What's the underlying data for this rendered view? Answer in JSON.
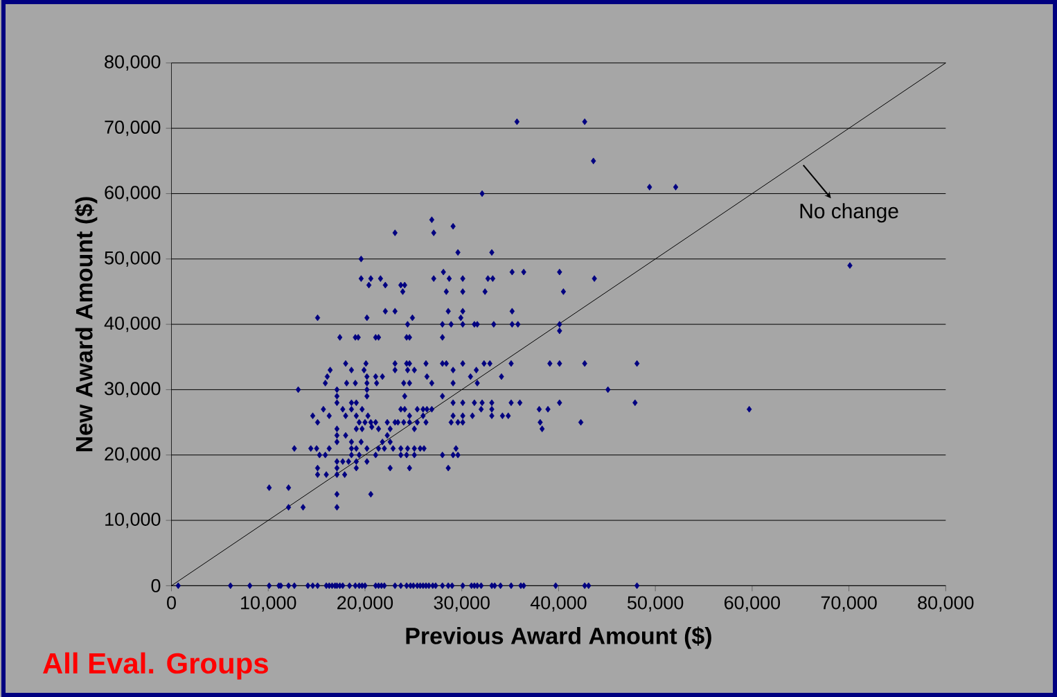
{
  "chart_data": {
    "type": "scatter",
    "xlabel": "Previous Award Amount ($)",
    "ylabel": "New Award Amount ($)",
    "xlim": [
      0,
      80000
    ],
    "ylim": [
      0,
      80000
    ],
    "xticks": [
      0,
      {
        "value": 10000,
        "label": "10,000"
      },
      {
        "value": 20000,
        "label": "20,000"
      },
      {
        "value": 30000,
        "label": "30,000"
      },
      {
        "value": 40000,
        "label": "40,000"
      },
      {
        "value": 50000,
        "label": "50,000"
      },
      {
        "value": 60000,
        "label": "60,000"
      },
      {
        "value": 70000,
        "label": "70,000"
      },
      {
        "value": 80000,
        "label": "80,000"
      }
    ],
    "yticks": [
      0,
      {
        "value": 10000,
        "label": "10,000"
      },
      {
        "value": 20000,
        "label": "20,000"
      },
      {
        "value": 30000,
        "label": "30,000"
      },
      {
        "value": 40000,
        "label": "40,000"
      },
      {
        "value": 50000,
        "label": "50,000"
      },
      {
        "value": 60000,
        "label": "60,000"
      },
      {
        "value": 70000,
        "label": "70,000"
      },
      {
        "value": 80000,
        "label": "80,000"
      }
    ],
    "grid": "y",
    "series": [
      {
        "color": "#000080",
        "marker": "diamond",
        "x": [
          700,
          6100,
          8100,
          10100,
          11100,
          11300,
          12100,
          12700,
          14100,
          14600,
          15100,
          16000,
          16300,
          16600,
          16900,
          17100,
          17400,
          17700,
          18400,
          19000,
          19400,
          19700,
          20000,
          21100,
          21400,
          21700,
          22000,
          23100,
          23700,
          24300,
          24700,
          25000,
          25400,
          25700,
          26000,
          26300,
          26600,
          27000,
          27300,
          28000,
          28600,
          29000,
          30100,
          31000,
          31300,
          31600,
          32000,
          33100,
          33400,
          34000,
          35100,
          36100,
          36400,
          39700,
          42700,
          43100,
          48100,
          13100,
          10100,
          12100,
          12100,
          13600,
          17100,
          17100,
          20600,
          15100,
          19600,
          19600,
          20400,
          20600,
          21600,
          22100,
          23100,
          23700,
          24100,
          23900,
          22100,
          23100,
          20200,
          24900,
          24400,
          17400,
          19000,
          19300,
          21100,
          21400,
          24300,
          24600,
          26900,
          27100,
          29100,
          29600,
          32100,
          28100,
          27100,
          28700,
          30100,
          28400,
          30100,
          32400,
          33100,
          32700,
          33200,
          35200,
          36400,
          35200,
          28600,
          30100,
          29900,
          28000,
          28900,
          30100,
          31300,
          31600,
          33300,
          35200,
          35800,
          28000,
          35700,
          42700,
          43600,
          49400,
          52100,
          70100,
          40100,
          40500,
          43700,
          40100,
          40100,
          48100,
          42700,
          39100,
          40100,
          35100,
          45100,
          47900,
          40100,
          38000,
          38900,
          38100,
          38300,
          42300,
          59700,
          34100,
          35100,
          36000,
          33100,
          33100,
          33100,
          34200,
          34800,
          32300,
          32900,
          31500,
          30900,
          31600,
          30100,
          29100,
          29100,
          30100,
          31300,
          32100,
          32000,
          31100,
          30100,
          29100,
          28900,
          29600,
          30100,
          28000,
          28000,
          28400,
          29100,
          29400,
          29100,
          29600,
          28600,
          28000,
          26300,
          26400,
          26900,
          25400,
          26000,
          26400,
          26900,
          26000,
          26300,
          25400,
          24300,
          24600,
          23100,
          23100,
          24400,
          25100,
          24000,
          24600,
          24100,
          23700,
          24100,
          24600,
          25100,
          23100,
          23400,
          24000,
          24600,
          22300,
          22600,
          22300,
          21800,
          22600,
          21400,
          22000,
          22900,
          23700,
          24400,
          25100,
          25700,
          26100,
          23700,
          24300,
          25100,
          22600,
          24600,
          18000,
          20100,
          18600,
          19900,
          20200,
          21100,
          21800,
          20200,
          18100,
          19000,
          21200,
          20200,
          20200,
          16400,
          16100,
          15900,
          17100,
          14600,
          15100,
          15700,
          16300,
          17100,
          17100,
          17100,
          17700,
          18000,
          18600,
          19100,
          18600,
          19100,
          19700,
          20300,
          19400,
          20000,
          20600,
          21100,
          19100,
          19700,
          20700,
          21400,
          16300,
          15000,
          14400,
          12700,
          15300,
          15900,
          17100,
          17700,
          18300,
          17100,
          17100,
          16000,
          15100,
          15100,
          17900,
          19100,
          19100,
          20200,
          19400,
          18600,
          20200,
          21100,
          18600,
          17100,
          17100,
          18000,
          19600,
          18600,
          19100
        ],
        "values": [
          0,
          0,
          0,
          0,
          0,
          0,
          0,
          0,
          0,
          0,
          0,
          0,
          0,
          0,
          0,
          0,
          0,
          0,
          0,
          0,
          0,
          0,
          0,
          0,
          0,
          0,
          0,
          0,
          0,
          0,
          0,
          0,
          0,
          0,
          0,
          0,
          0,
          0,
          0,
          0,
          0,
          0,
          0,
          0,
          0,
          0,
          0,
          0,
          0,
          0,
          0,
          0,
          0,
          0,
          0,
          0,
          0,
          30000,
          15000,
          15000,
          12000,
          12000,
          12000,
          14000,
          14000,
          41000,
          50000,
          47000,
          46000,
          47000,
          47000,
          46000,
          54000,
          46000,
          46000,
          45000,
          42000,
          42000,
          41000,
          41000,
          40000,
          38000,
          38000,
          38000,
          38000,
          38000,
          38000,
          38000,
          56000,
          54000,
          55000,
          51000,
          60000,
          48000,
          47000,
          47000,
          47000,
          45000,
          45000,
          45000,
          51000,
          47000,
          47000,
          48000,
          48000,
          42000,
          42000,
          42000,
          41000,
          40000,
          40000,
          40000,
          40000,
          40000,
          40000,
          40000,
          40000,
          38000,
          71000,
          71000,
          65000,
          61000,
          61000,
          49000,
          48000,
          45000,
          47000,
          40000,
          39000,
          34000,
          34000,
          34000,
          34000,
          34000,
          30000,
          28000,
          28000,
          27000,
          27000,
          25000,
          24000,
          25000,
          27000,
          32000,
          28000,
          28000,
          28000,
          27000,
          26000,
          26000,
          26000,
          34000,
          34000,
          33000,
          32000,
          31000,
          34000,
          31000,
          28000,
          28000,
          28000,
          28000,
          27000,
          26000,
          26000,
          26000,
          25000,
          25000,
          25000,
          29000,
          34000,
          34000,
          33000,
          21000,
          20000,
          20000,
          18000,
          20000,
          34000,
          32000,
          31000,
          27000,
          27000,
          27000,
          27000,
          26000,
          25000,
          25000,
          34000,
          34000,
          34000,
          33000,
          33000,
          33000,
          31000,
          31000,
          29000,
          27000,
          27000,
          26000,
          24000,
          25000,
          25000,
          25000,
          25000,
          25000,
          24000,
          23000,
          22000,
          22000,
          21000,
          21000,
          21000,
          21000,
          21000,
          21000,
          21000,
          21000,
          20000,
          20000,
          20000,
          18000,
          18000,
          34000,
          34000,
          33000,
          33000,
          32000,
          32000,
          32000,
          31000,
          31000,
          31000,
          31000,
          30000,
          29000,
          33000,
          32000,
          31000,
          29000,
          26000,
          25000,
          27000,
          26000,
          24000,
          30000,
          28000,
          27000,
          26000,
          28000,
          28000,
          27000,
          26000,
          27000,
          26000,
          25000,
          25000,
          25000,
          25000,
          24000,
          24000,
          24300,
          24000,
          21000,
          21000,
          21000,
          21000,
          20000,
          20000,
          19000,
          19000,
          19000,
          18000,
          17000,
          17000,
          18000,
          17000,
          17000,
          18000,
          19000,
          19000,
          20000,
          20000,
          21000,
          20000,
          22000,
          22000,
          23000,
          23000,
          22000,
          21000,
          21000
        ]
      },
      {
        "type": "line",
        "color": "#000000",
        "marker": "none",
        "x": [
          0,
          80000
        ],
        "values": [
          0,
          80000
        ]
      }
    ],
    "annotations": [
      {
        "text": "No change",
        "x": 65000,
        "y": 65000
      },
      "All Eval. Groups"
    ]
  }
}
